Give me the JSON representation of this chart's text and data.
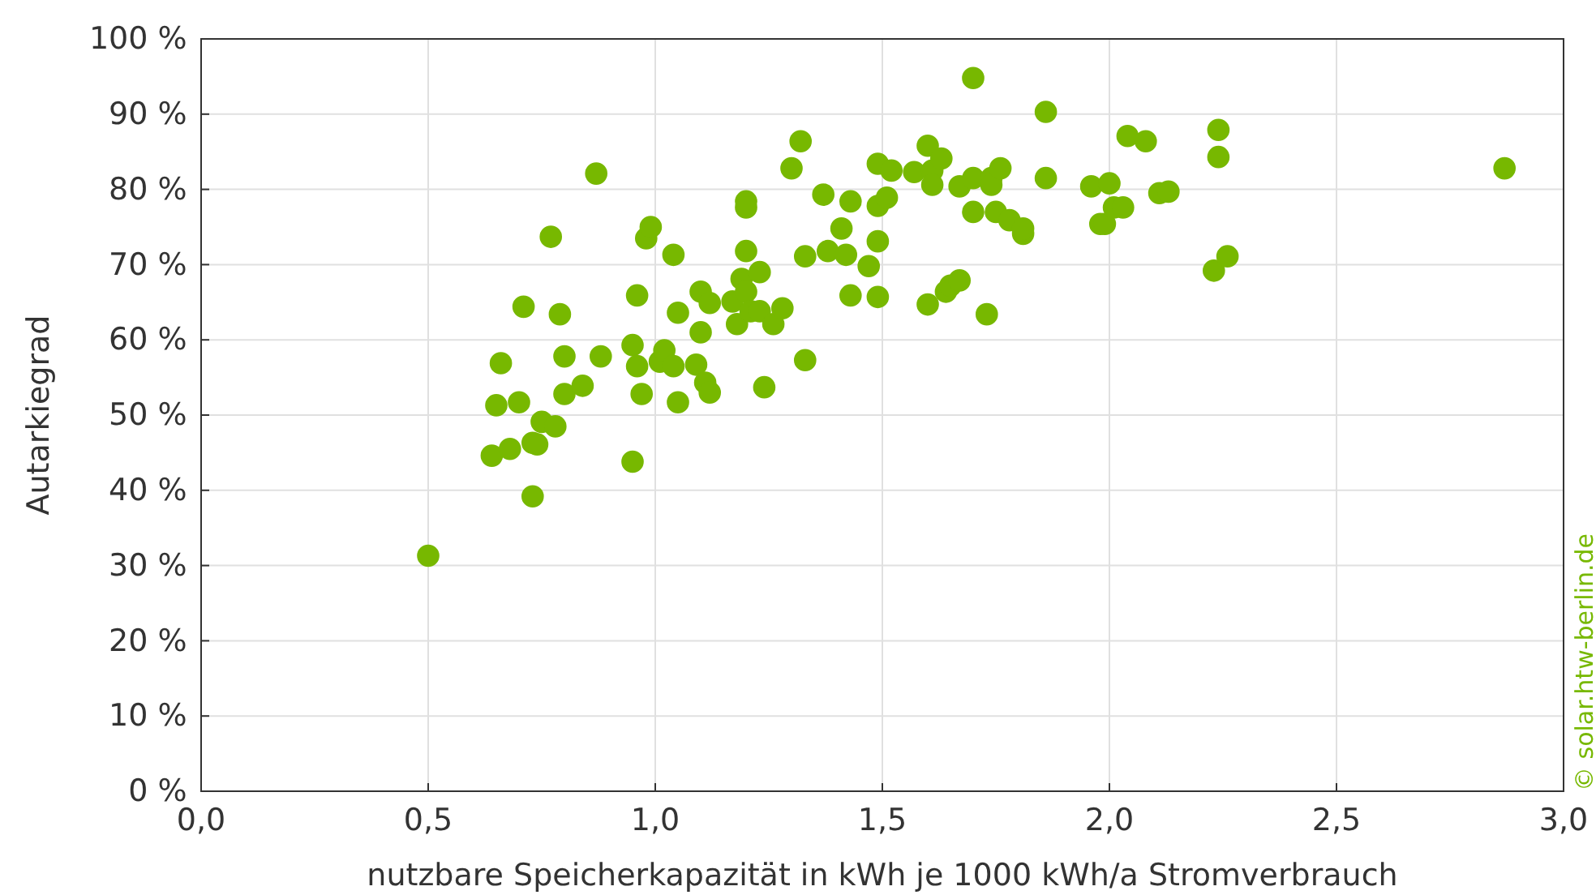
{
  "chart_data": {
    "type": "scatter",
    "xlabel": "nutzbare Speicherkapazität in kWh je 1000 kWh/a Stromverbrauch",
    "ylabel": "Autarkiegrad",
    "annotations": [
      "© solar.htw-berlin.de"
    ],
    "xlim": [
      0,
      3
    ],
    "xticks": [
      {
        "value": 0,
        "label": "0,0"
      },
      {
        "value": 0.5,
        "label": "0,5"
      },
      {
        "value": 1,
        "label": "1,0"
      },
      {
        "value": 1.5,
        "label": "1,5"
      },
      {
        "value": 2,
        "label": "2,0"
      },
      {
        "value": 2.5,
        "label": "2,5"
      },
      {
        "value": 3,
        "label": "3,0"
      }
    ],
    "ylim": [
      0,
      100
    ],
    "yticks": [
      {
        "value": 0,
        "label": "0 %"
      },
      {
        "value": 10,
        "label": "10 %"
      },
      {
        "value": 20,
        "label": "20 %"
      },
      {
        "value": 30,
        "label": "30 %"
      },
      {
        "value": 40,
        "label": "40 %"
      },
      {
        "value": 50,
        "label": "50 %"
      },
      {
        "value": 60,
        "label": "60 %"
      },
      {
        "value": 70,
        "label": "70 %"
      },
      {
        "value": 80,
        "label": "80 %"
      },
      {
        "value": 90,
        "label": "90 %"
      },
      {
        "value": 100,
        "label": "100 %"
      }
    ],
    "grid": true,
    "marker": "circle",
    "series": [
      {
        "color": "#77b800",
        "x": [
          0.5,
          0.64,
          0.65,
          0.66,
          0.68,
          0.7,
          0.71,
          0.73,
          0.73,
          0.75,
          0.74,
          0.77,
          0.78,
          0.79,
          0.8,
          0.8,
          0.84,
          0.87,
          0.88,
          0.95,
          0.95,
          0.96,
          0.96,
          0.97,
          0.98,
          0.99,
          1.01,
          1.02,
          1.04,
          1.04,
          1.05,
          1.05,
          1.09,
          1.1,
          1.1,
          1.11,
          1.12,
          1.12,
          1.17,
          1.18,
          1.19,
          1.2,
          1.2,
          1.2,
          1.2,
          1.21,
          1.23,
          1.23,
          1.24,
          1.26,
          1.28,
          1.3,
          1.32,
          1.33,
          1.33,
          1.37,
          1.38,
          1.41,
          1.42,
          1.43,
          1.43,
          1.47,
          1.49,
          1.49,
          1.49,
          1.49,
          1.51,
          1.52,
          1.57,
          1.6,
          1.6,
          1.61,
          1.61,
          1.63,
          1.64,
          1.65,
          1.67,
          1.67,
          1.7,
          1.7,
          1.7,
          1.73,
          1.74,
          1.74,
          1.75,
          1.76,
          1.78,
          1.81,
          1.81,
          1.86,
          1.86,
          1.96,
          1.98,
          1.99,
          2.0,
          2.01,
          2.03,
          2.04,
          2.08,
          2.11,
          2.13,
          2.24,
          2.23,
          2.24,
          2.26,
          2.87
        ],
        "values": [
          31.3,
          44.6,
          51.3,
          56.9,
          45.5,
          51.7,
          64.4,
          39.2,
          46.3,
          49.1,
          46.1,
          73.7,
          48.5,
          63.4,
          52.8,
          57.8,
          53.9,
          82.1,
          57.8,
          59.3,
          43.8,
          56.5,
          65.9,
          52.8,
          73.5,
          75.0,
          57.1,
          58.6,
          71.3,
          56.5,
          63.6,
          51.7,
          56.7,
          66.4,
          61.0,
          54.3,
          64.9,
          53.0,
          65.1,
          62.1,
          68.1,
          78.4,
          77.6,
          71.8,
          66.4,
          63.8,
          63.8,
          69.0,
          53.7,
          62.1,
          64.2,
          82.8,
          86.4,
          71.1,
          57.3,
          79.3,
          71.8,
          74.8,
          71.3,
          65.9,
          78.4,
          69.8,
          77.8,
          83.4,
          73.1,
          65.7,
          78.9,
          82.5,
          82.3,
          85.8,
          64.7,
          82.5,
          80.6,
          84.1,
          66.4,
          67.2,
          67.9,
          80.4,
          77.0,
          94.8,
          81.5,
          63.4,
          81.5,
          80.6,
          77.0,
          82.8,
          75.9,
          74.1,
          74.8,
          90.3,
          81.5,
          80.4,
          75.4,
          75.4,
          80.8,
          77.6,
          77.6,
          87.1,
          86.4,
          79.5,
          79.7,
          87.9,
          69.2,
          84.3,
          71.1,
          82.8
        ]
      }
    ]
  }
}
